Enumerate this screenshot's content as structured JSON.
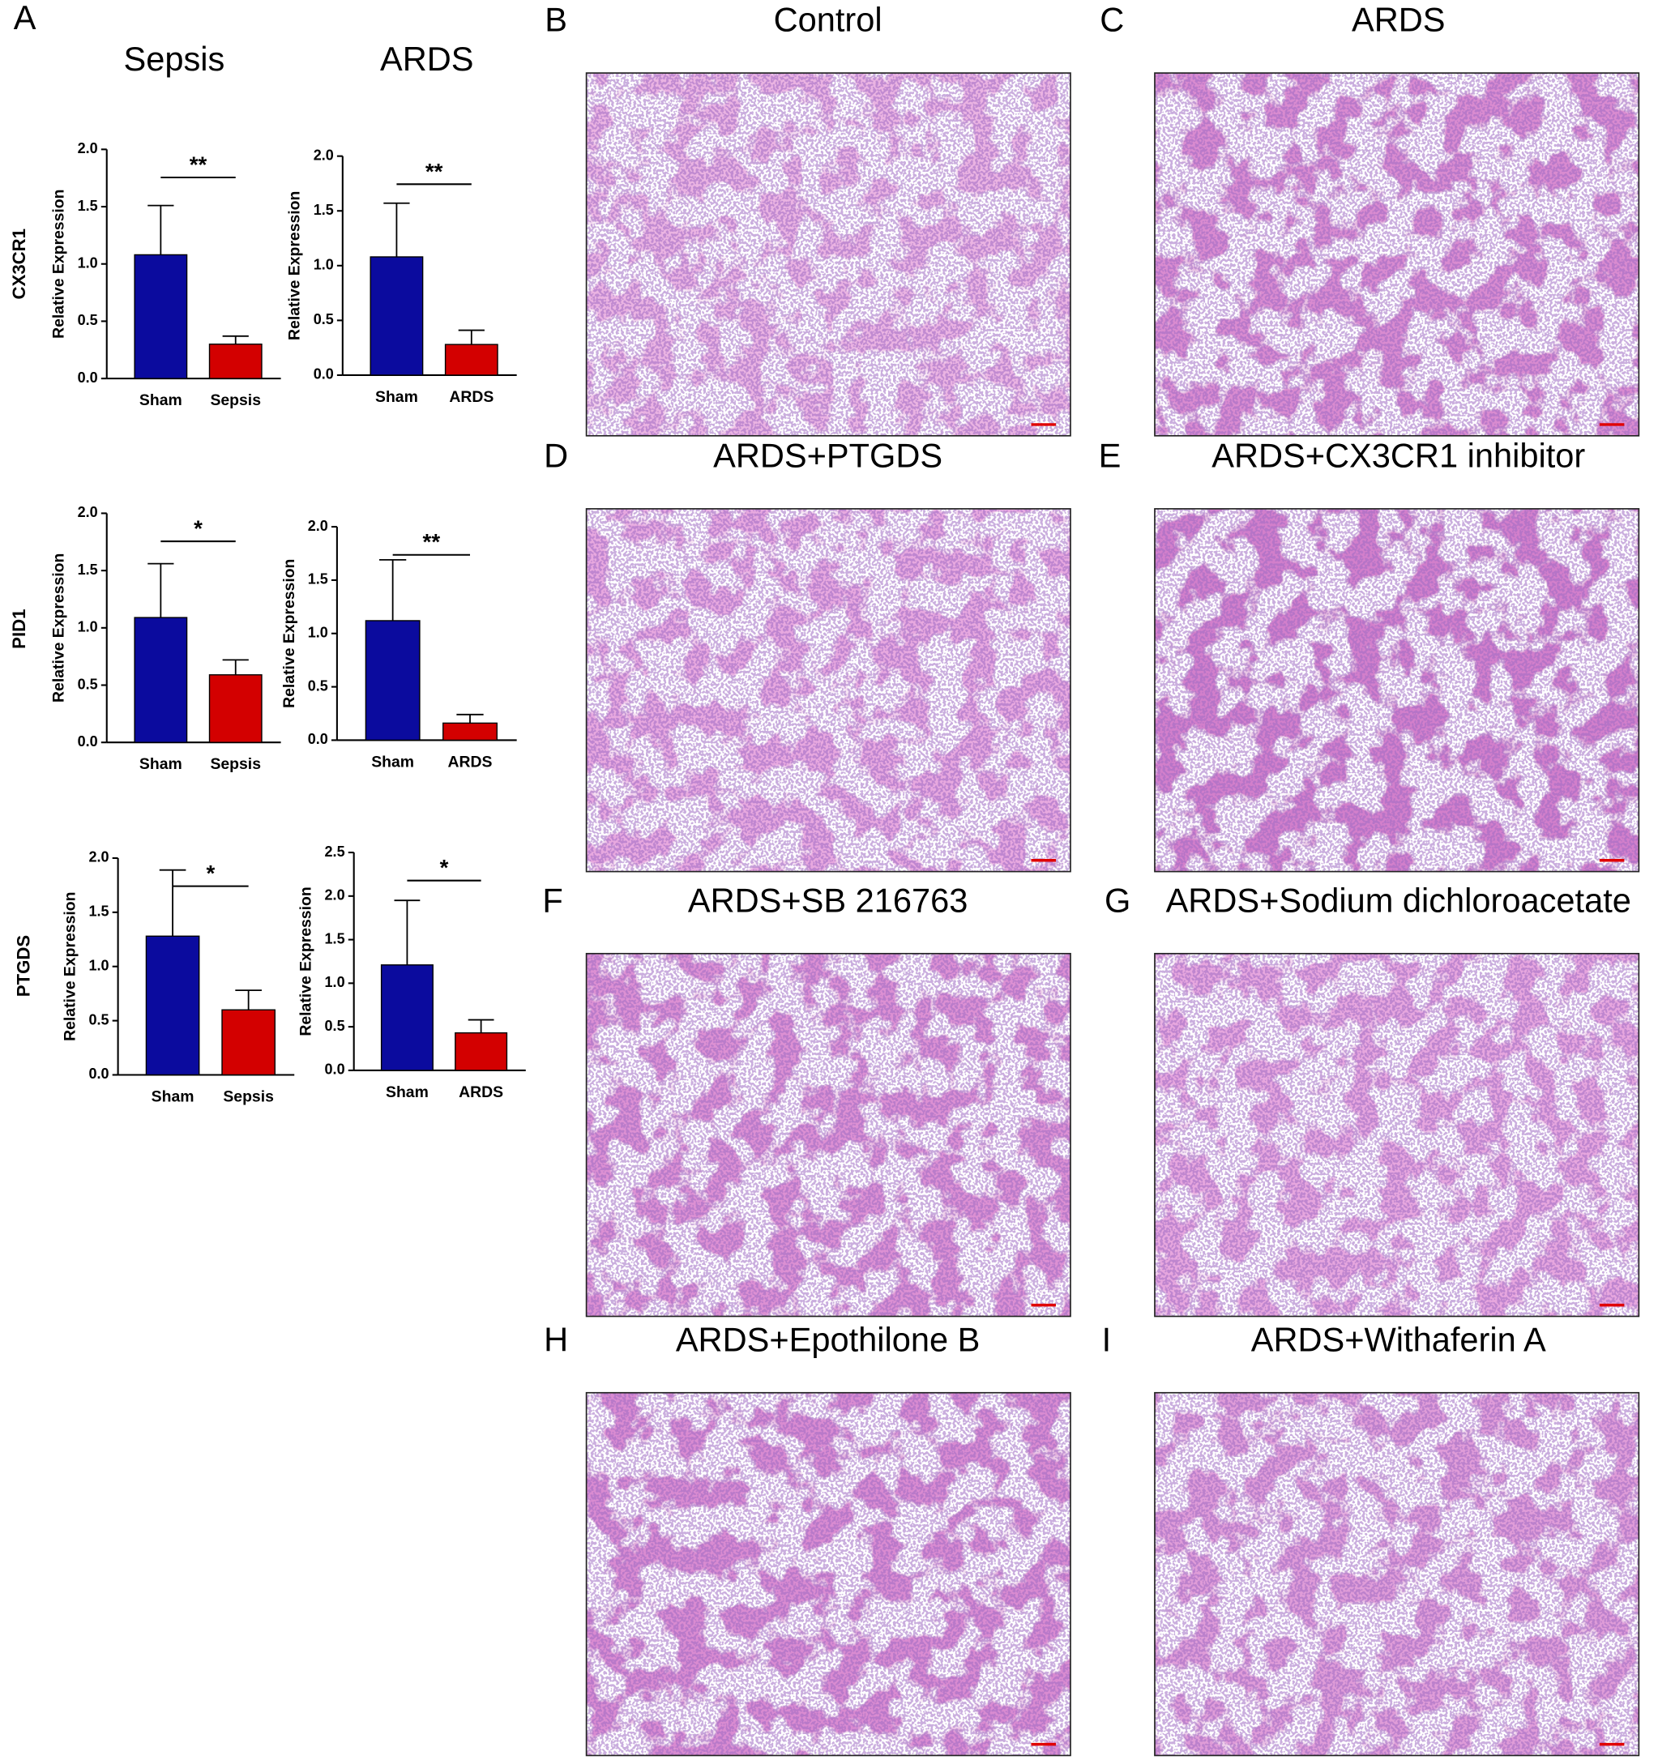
{
  "panels": {
    "letter_a": "A",
    "column_titles": [
      "Sepsis",
      "ARDS"
    ],
    "row_labels": [
      "CX3CR1",
      "PID1",
      "PTGDS"
    ],
    "images": [
      {
        "letter": "B",
        "title": "Control"
      },
      {
        "letter": "C",
        "title": "ARDS"
      },
      {
        "letter": "D",
        "title": "ARDS+PTGDS"
      },
      {
        "letter": "E",
        "title": "ARDS+CX3CR1 inhibitor"
      },
      {
        "letter": "F",
        "title": "ARDS+SB 216763"
      },
      {
        "letter": "G",
        "title": "ARDS+Sodium dichloroacetate"
      },
      {
        "letter": "H",
        "title": "ARDS+Epothilone B"
      },
      {
        "letter": "I",
        "title": "ARDS+Withaferin A"
      }
    ]
  },
  "chart_data": [
    {
      "type": "bar",
      "ylabel": "Relative  Expression",
      "categories": [
        "Sham",
        "Sepsis"
      ],
      "values": [
        1.08,
        0.3
      ],
      "errors": [
        0.43,
        0.07
      ],
      "colors": [
        "#0b0b9e",
        "#d30000"
      ],
      "significance": "**",
      "ylim": [
        0,
        2
      ],
      "yticks": [
        {
          "value": 0,
          "label": "0.0"
        },
        {
          "value": 0.5,
          "label": "0.5"
        },
        {
          "value": 1,
          "label": "1.0"
        },
        {
          "value": 1.5,
          "label": "1.5"
        },
        {
          "value": 2,
          "label": "2.0"
        }
      ]
    },
    {
      "type": "bar",
      "ylabel": "Relative  Expression",
      "categories": [
        "Sham",
        "ARDS"
      ],
      "values": [
        1.08,
        0.28
      ],
      "errors": [
        0.49,
        0.13
      ],
      "colors": [
        "#0b0b9e",
        "#d30000"
      ],
      "significance": "**",
      "ylim": [
        0,
        2
      ],
      "yticks": [
        {
          "value": 0,
          "label": "0.0"
        },
        {
          "value": 0.5,
          "label": "0.5"
        },
        {
          "value": 1,
          "label": "1.0"
        },
        {
          "value": 1.5,
          "label": "1.5"
        },
        {
          "value": 2,
          "label": "2.0"
        }
      ]
    },
    {
      "type": "bar",
      "ylabel": "Relative  Expression",
      "categories": [
        "Sham",
        "Sepsis"
      ],
      "values": [
        1.09,
        0.59
      ],
      "errors": [
        0.47,
        0.13
      ],
      "colors": [
        "#0b0b9e",
        "#d30000"
      ],
      "significance": "*",
      "ylim": [
        0,
        2
      ],
      "yticks": [
        {
          "value": 0,
          "label": "0.0"
        },
        {
          "value": 0.5,
          "label": "0.5"
        },
        {
          "value": 1,
          "label": "1.0"
        },
        {
          "value": 1.5,
          "label": "1.5"
        },
        {
          "value": 2,
          "label": "2.0"
        }
      ]
    },
    {
      "type": "bar",
      "ylabel": "Relative  Expression",
      "categories": [
        "Sham",
        "ARDS"
      ],
      "values": [
        1.12,
        0.16
      ],
      "errors": [
        0.57,
        0.08
      ],
      "colors": [
        "#0b0b9e",
        "#d30000"
      ],
      "significance": "**",
      "ylim": [
        0,
        2
      ],
      "yticks": [
        {
          "value": 0,
          "label": "0.0"
        },
        {
          "value": 0.5,
          "label": "0.5"
        },
        {
          "value": 1,
          "label": "1.0"
        },
        {
          "value": 1.5,
          "label": "1.5"
        },
        {
          "value": 2,
          "label": "2.0"
        }
      ]
    },
    {
      "type": "bar",
      "ylabel": "Relative  Expression",
      "categories": [
        "Sham",
        "Sepsis"
      ],
      "values": [
        1.28,
        0.6
      ],
      "errors": [
        0.61,
        0.18
      ],
      "colors": [
        "#0b0b9e",
        "#d30000"
      ],
      "significance": "*",
      "ylim": [
        0,
        2
      ],
      "yticks": [
        {
          "value": 0,
          "label": "0.0"
        },
        {
          "value": 0.5,
          "label": "0.5"
        },
        {
          "value": 1,
          "label": "1.0"
        },
        {
          "value": 1.5,
          "label": "1.5"
        },
        {
          "value": 2,
          "label": "2.0"
        }
      ]
    },
    {
      "type": "bar",
      "ylabel": "Relative  Expression",
      "categories": [
        "Sham",
        "ARDS"
      ],
      "values": [
        1.21,
        0.43
      ],
      "errors": [
        0.74,
        0.15
      ],
      "colors": [
        "#0b0b9e",
        "#d30000"
      ],
      "significance": "*",
      "ylim": [
        0,
        2.5
      ],
      "yticks": [
        {
          "value": 0,
          "label": "0.0"
        },
        {
          "value": 0.5,
          "label": "0.5"
        },
        {
          "value": 1,
          "label": "1.0"
        },
        {
          "value": 1.5,
          "label": "1.5"
        },
        {
          "value": 2,
          "label": "2.0"
        },
        {
          "value": 2.5,
          "label": "2.5"
        }
      ]
    }
  ]
}
